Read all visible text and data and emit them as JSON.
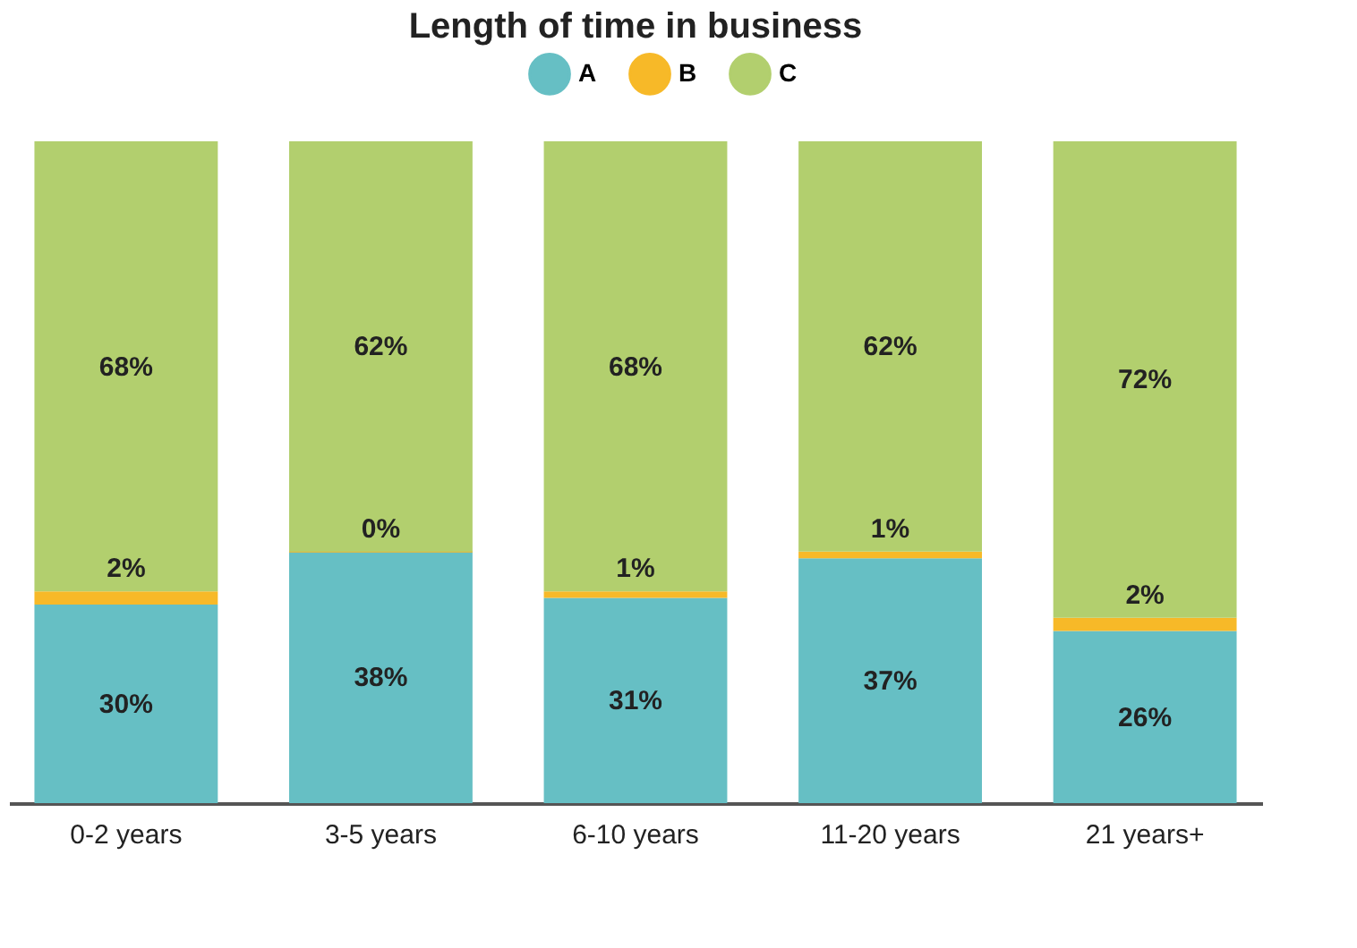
{
  "chart_data": {
    "type": "bar",
    "title": "Length of time in business",
    "stacked": true,
    "legend": "top",
    "grid": false,
    "categories": [
      "0-2 years",
      "3-5 years",
      "6-10 years",
      "11-20 years",
      "21 years+"
    ],
    "series": [
      {
        "name": "A",
        "color": "#66bfc4",
        "values": [
          30,
          38,
          31,
          37,
          26
        ],
        "value_labels": [
          "30%",
          "38%",
          "31%",
          "37%",
          "26%"
        ]
      },
      {
        "name": "B",
        "color": "#f7b928",
        "values": [
          2,
          0,
          1,
          1,
          2
        ],
        "value_labels": [
          "2%",
          "0%",
          "1%",
          "1%",
          "2%"
        ]
      },
      {
        "name": "C",
        "color": "#b2cf6e",
        "values": [
          68,
          62,
          68,
          62,
          72
        ],
        "value_labels": [
          "68%",
          "62%",
          "68%",
          "62%",
          "72%"
        ]
      }
    ]
  }
}
